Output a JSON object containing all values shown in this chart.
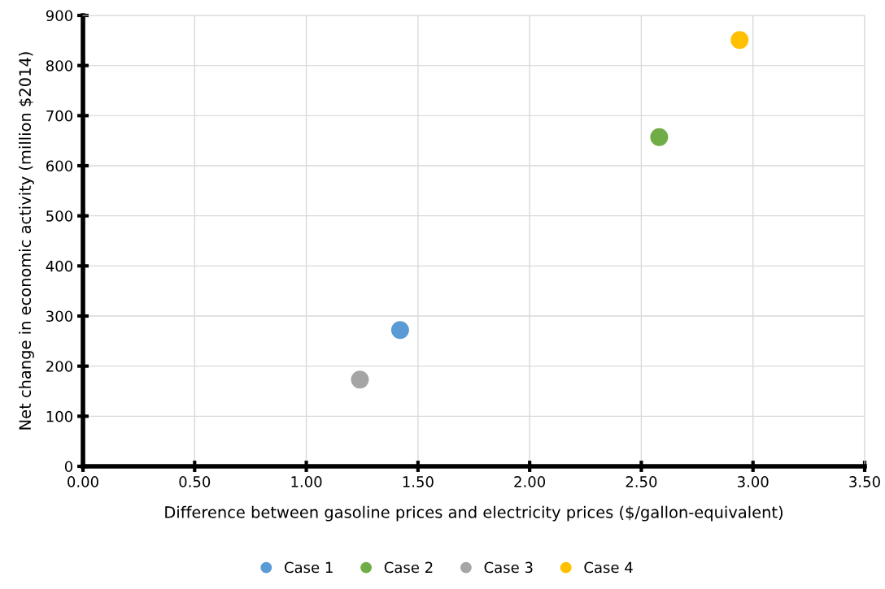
{
  "chart_data": {
    "type": "scatter",
    "xlabel": "Difference between gasoline prices and electricity prices ($/gallon-equivalent)",
    "ylabel": "Net change in economic activity (million $2014)",
    "series": [
      {
        "name": "Case 1",
        "color": "#5b9bd5",
        "x": [
          1.42
        ],
        "values": [
          272
        ]
      },
      {
        "name": "Case 2",
        "color": "#70ad47",
        "x": [
          2.58
        ],
        "values": [
          657
        ]
      },
      {
        "name": "Case 3",
        "color": "#a5a5a5",
        "x": [
          1.24
        ],
        "values": [
          173
        ]
      },
      {
        "name": "Case 4",
        "color": "#ffc000",
        "x": [
          2.94
        ],
        "values": [
          851
        ]
      }
    ],
    "xlim": [
      0,
      3.5
    ],
    "xticks": [
      {
        "value": 0,
        "label": "0.00"
      },
      {
        "value": 0.5,
        "label": "0.50"
      },
      {
        "value": 1,
        "label": "1.00"
      },
      {
        "value": 1.5,
        "label": "1.50"
      },
      {
        "value": 2,
        "label": "2.00"
      },
      {
        "value": 2.5,
        "label": "2.50"
      },
      {
        "value": 3,
        "label": "3.00"
      },
      {
        "value": 3.5,
        "label": "3.50"
      }
    ],
    "ylim": [
      0,
      900
    ],
    "yticks": [
      0,
      100,
      200,
      300,
      400,
      500,
      600,
      700,
      800,
      900
    ],
    "grid": true,
    "legend": "bottom",
    "marker": "circle"
  }
}
